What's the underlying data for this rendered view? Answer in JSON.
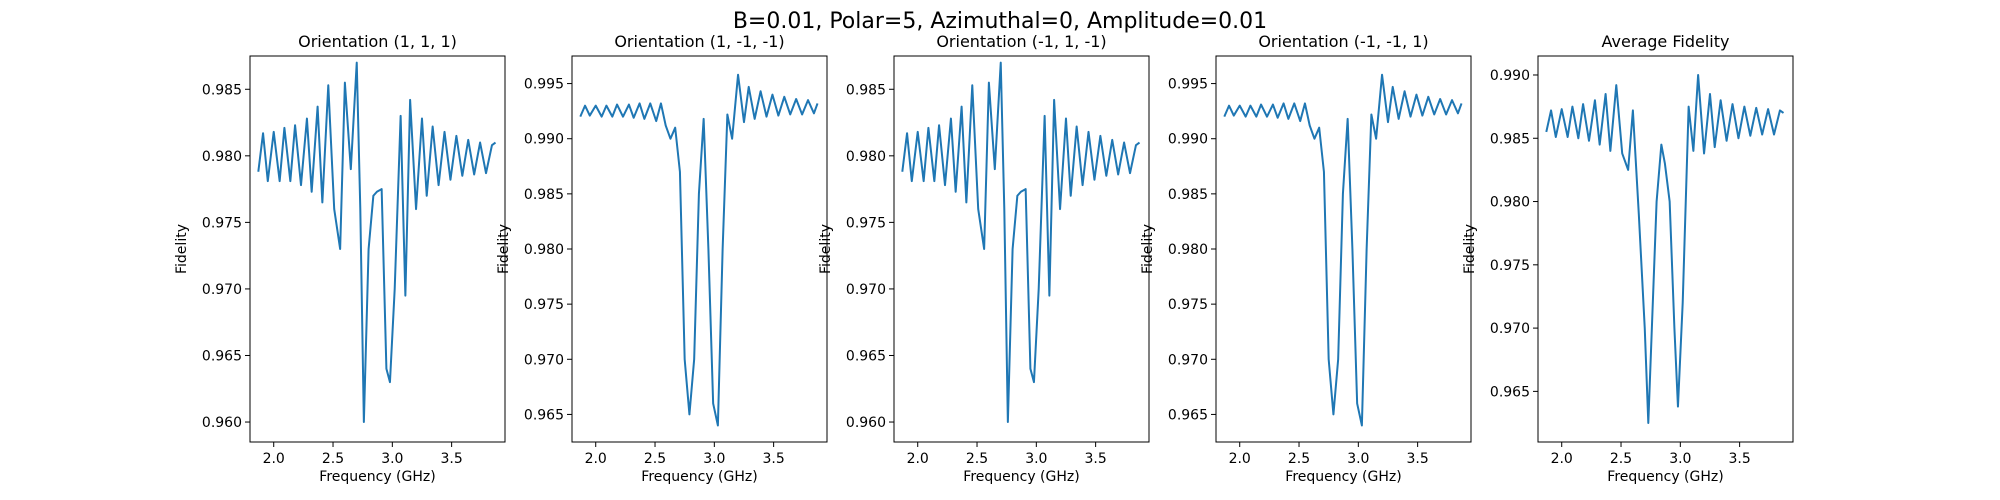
{
  "figure": {
    "title": "B=0.01, Polar=5, Azimuthal=0, Amplitude=0.01"
  },
  "colors": {
    "line": "#1f77b4"
  },
  "chart_data": [
    {
      "type": "line",
      "title": "Orientation (1, 1, 1)",
      "xlabel": "Frequency (GHz)",
      "ylabel": "Fidelity",
      "xlim": [
        1.8,
        3.95
      ],
      "ylim": [
        0.9585,
        0.9875
      ],
      "xticks": [
        2.0,
        2.5,
        3.0,
        3.5
      ],
      "yticks": [
        0.96,
        0.965,
        0.97,
        0.975,
        0.98,
        0.985
      ],
      "grid": false,
      "series": [
        {
          "x": [
            1.87,
            1.91,
            1.95,
            2.0,
            2.05,
            2.09,
            2.14,
            2.18,
            2.23,
            2.28,
            2.32,
            2.37,
            2.41,
            2.46,
            2.51,
            2.56,
            2.6,
            2.65,
            2.7,
            2.73,
            2.76,
            2.8,
            2.84,
            2.87,
            2.91,
            2.95,
            2.98,
            3.02,
            3.07,
            3.11,
            3.15,
            3.2,
            3.25,
            3.29,
            3.34,
            3.39,
            3.44,
            3.49,
            3.54,
            3.59,
            3.64,
            3.69,
            3.74,
            3.79,
            3.84,
            3.87
          ],
          "y": [
            0.9788,
            0.9817,
            0.9781,
            0.9818,
            0.9781,
            0.9821,
            0.9781,
            0.9823,
            0.9778,
            0.9828,
            0.9773,
            0.9837,
            0.9765,
            0.9853,
            0.976,
            0.973,
            0.9855,
            0.979,
            0.987,
            0.976,
            0.96,
            0.973,
            0.977,
            0.9773,
            0.9775,
            0.964,
            0.963,
            0.97,
            0.983,
            0.9695,
            0.9842,
            0.976,
            0.9828,
            0.977,
            0.9822,
            0.9778,
            0.9818,
            0.9782,
            0.9815,
            0.9785,
            0.9812,
            0.9786,
            0.981,
            0.9787,
            0.9808,
            0.981
          ]
        }
      ]
    },
    {
      "type": "line",
      "title": "Orientation (1, -1, -1)",
      "xlabel": "Frequency (GHz)",
      "ylabel": "Fidelity",
      "xlim": [
        1.8,
        3.95
      ],
      "ylim": [
        0.9625,
        0.9975
      ],
      "xticks": [
        2.0,
        2.5,
        3.0,
        3.5
      ],
      "yticks": [
        0.965,
        0.97,
        0.975,
        0.98,
        0.985,
        0.99,
        0.995
      ],
      "grid": false,
      "series": [
        {
          "x": [
            1.87,
            1.91,
            1.95,
            2.0,
            2.05,
            2.09,
            2.14,
            2.18,
            2.23,
            2.28,
            2.32,
            2.37,
            2.41,
            2.46,
            2.51,
            2.55,
            2.59,
            2.63,
            2.67,
            2.71,
            2.75,
            2.79,
            2.83,
            2.87,
            2.91,
            2.95,
            2.99,
            3.03,
            3.07,
            3.11,
            3.15,
            3.2,
            3.25,
            3.29,
            3.34,
            3.39,
            3.44,
            3.49,
            3.54,
            3.59,
            3.64,
            3.69,
            3.74,
            3.79,
            3.84,
            3.87
          ],
          "y": [
            0.992,
            0.993,
            0.9921,
            0.993,
            0.992,
            0.993,
            0.992,
            0.9931,
            0.992,
            0.9931,
            0.9919,
            0.9932,
            0.9918,
            0.9932,
            0.9916,
            0.9932,
            0.9912,
            0.99,
            0.991,
            0.987,
            0.97,
            0.965,
            0.97,
            0.985,
            0.9918,
            0.98,
            0.966,
            0.964,
            0.98,
            0.9922,
            0.99,
            0.9958,
            0.9915,
            0.9947,
            0.9918,
            0.9943,
            0.992,
            0.994,
            0.9921,
            0.9938,
            0.9922,
            0.9936,
            0.9922,
            0.9935,
            0.9923,
            0.9932
          ]
        }
      ]
    },
    {
      "type": "line",
      "title": "Orientation (-1, 1, -1)",
      "xlabel": "Frequency (GHz)",
      "ylabel": "Fidelity",
      "xlim": [
        1.8,
        3.95
      ],
      "ylim": [
        0.9585,
        0.9875
      ],
      "xticks": [
        2.0,
        2.5,
        3.0,
        3.5
      ],
      "yticks": [
        0.96,
        0.965,
        0.97,
        0.975,
        0.98,
        0.985
      ],
      "grid": false,
      "series": [
        {
          "x": [
            1.87,
            1.91,
            1.95,
            2.0,
            2.05,
            2.09,
            2.14,
            2.18,
            2.23,
            2.28,
            2.32,
            2.37,
            2.41,
            2.46,
            2.51,
            2.56,
            2.6,
            2.65,
            2.7,
            2.73,
            2.76,
            2.8,
            2.84,
            2.87,
            2.91,
            2.95,
            2.98,
            3.02,
            3.07,
            3.11,
            3.15,
            3.2,
            3.25,
            3.29,
            3.34,
            3.39,
            3.44,
            3.49,
            3.54,
            3.59,
            3.64,
            3.69,
            3.74,
            3.79,
            3.84,
            3.87
          ],
          "y": [
            0.9788,
            0.9817,
            0.9781,
            0.9818,
            0.9781,
            0.9821,
            0.9781,
            0.9823,
            0.9778,
            0.9828,
            0.9773,
            0.9837,
            0.9765,
            0.9853,
            0.976,
            0.973,
            0.9855,
            0.979,
            0.987,
            0.976,
            0.96,
            0.973,
            0.977,
            0.9773,
            0.9775,
            0.964,
            0.963,
            0.97,
            0.983,
            0.9695,
            0.9842,
            0.976,
            0.9828,
            0.977,
            0.9822,
            0.9778,
            0.9818,
            0.9782,
            0.9815,
            0.9785,
            0.9812,
            0.9786,
            0.981,
            0.9787,
            0.9808,
            0.981
          ]
        }
      ]
    },
    {
      "type": "line",
      "title": "Orientation (-1, -1, 1)",
      "xlabel": "Frequency (GHz)",
      "ylabel": "Fidelity",
      "xlim": [
        1.8,
        3.95
      ],
      "ylim": [
        0.9625,
        0.9975
      ],
      "xticks": [
        2.0,
        2.5,
        3.0,
        3.5
      ],
      "yticks": [
        0.965,
        0.97,
        0.975,
        0.98,
        0.985,
        0.99,
        0.995
      ],
      "grid": false,
      "series": [
        {
          "x": [
            1.87,
            1.91,
            1.95,
            2.0,
            2.05,
            2.09,
            2.14,
            2.18,
            2.23,
            2.28,
            2.32,
            2.37,
            2.41,
            2.46,
            2.51,
            2.55,
            2.59,
            2.63,
            2.67,
            2.71,
            2.75,
            2.79,
            2.83,
            2.87,
            2.91,
            2.95,
            2.99,
            3.03,
            3.07,
            3.11,
            3.15,
            3.2,
            3.25,
            3.29,
            3.34,
            3.39,
            3.44,
            3.49,
            3.54,
            3.59,
            3.64,
            3.69,
            3.74,
            3.79,
            3.84,
            3.87
          ],
          "y": [
            0.992,
            0.993,
            0.9921,
            0.993,
            0.992,
            0.993,
            0.992,
            0.9931,
            0.992,
            0.9931,
            0.9919,
            0.9932,
            0.9918,
            0.9932,
            0.9916,
            0.9932,
            0.9912,
            0.99,
            0.991,
            0.987,
            0.97,
            0.965,
            0.97,
            0.985,
            0.9918,
            0.98,
            0.966,
            0.964,
            0.98,
            0.9922,
            0.99,
            0.9958,
            0.9915,
            0.9947,
            0.9918,
            0.9943,
            0.992,
            0.994,
            0.9921,
            0.9938,
            0.9922,
            0.9936,
            0.9922,
            0.9935,
            0.9923,
            0.9932
          ]
        }
      ]
    },
    {
      "type": "line",
      "title": "Average Fidelity",
      "xlabel": "Frequency (GHz)",
      "ylabel": "Fidelity",
      "xlim": [
        1.8,
        3.95
      ],
      "ylim": [
        0.961,
        0.9915
      ],
      "xticks": [
        2.0,
        2.5,
        3.0,
        3.5
      ],
      "yticks": [
        0.965,
        0.97,
        0.975,
        0.98,
        0.985,
        0.99
      ],
      "grid": false,
      "series": [
        {
          "x": [
            1.87,
            1.91,
            1.95,
            2.0,
            2.05,
            2.09,
            2.14,
            2.18,
            2.23,
            2.28,
            2.32,
            2.37,
            2.41,
            2.46,
            2.51,
            2.56,
            2.6,
            2.65,
            2.7,
            2.73,
            2.76,
            2.8,
            2.84,
            2.87,
            2.91,
            2.95,
            2.98,
            3.02,
            3.07,
            3.11,
            3.15,
            3.2,
            3.25,
            3.29,
            3.34,
            3.39,
            3.44,
            3.49,
            3.54,
            3.59,
            3.64,
            3.69,
            3.74,
            3.79,
            3.84,
            3.87
          ],
          "y": [
            0.9855,
            0.9872,
            0.9851,
            0.9873,
            0.9851,
            0.9875,
            0.985,
            0.9877,
            0.9848,
            0.988,
            0.9845,
            0.9885,
            0.984,
            0.9892,
            0.9838,
            0.9825,
            0.9872,
            0.979,
            0.97,
            0.9625,
            0.97,
            0.98,
            0.9845,
            0.983,
            0.98,
            0.97,
            0.9638,
            0.972,
            0.9875,
            0.984,
            0.99,
            0.9838,
            0.9885,
            0.9843,
            0.988,
            0.9848,
            0.9877,
            0.985,
            0.9875,
            0.9852,
            0.9874,
            0.9853,
            0.9873,
            0.9853,
            0.9872,
            0.987
          ]
        }
      ]
    }
  ]
}
